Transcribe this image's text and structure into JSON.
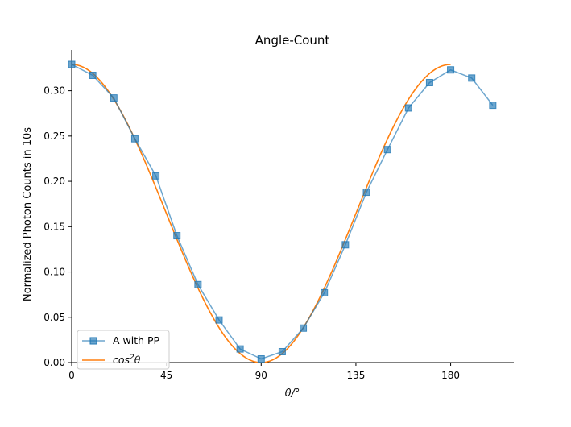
{
  "chart_data": {
    "type": "line",
    "title": "Angle-Count",
    "xlabel": "θ/°",
    "ylabel": "Normalized Photon Counts in 10s",
    "xlim": [
      0,
      210
    ],
    "ylim": [
      0,
      0.345
    ],
    "xticks": [
      0,
      45,
      90,
      135,
      180
    ],
    "yticks": [
      0.0,
      0.05,
      0.1,
      0.15,
      0.2,
      0.25,
      0.3
    ],
    "ytick_labels": [
      "0.00",
      "0.05",
      "0.10",
      "0.15",
      "0.20",
      "0.25",
      "0.30"
    ],
    "grid": false,
    "legend_position": "bottom-left",
    "series": [
      {
        "name": "A with PP",
        "kind": "line-markers",
        "marker": "square",
        "color": "#1f77b4",
        "x": [
          0,
          10,
          20,
          30,
          40,
          50,
          60,
          70,
          80,
          90,
          100,
          110,
          120,
          130,
          140,
          150,
          160,
          170,
          180,
          190,
          200
        ],
        "y": [
          0.329,
          0.317,
          0.292,
          0.247,
          0.206,
          0.14,
          0.086,
          0.047,
          0.015,
          0.004,
          0.012,
          0.038,
          0.077,
          0.13,
          0.188,
          0.235,
          0.281,
          0.309,
          0.323,
          0.314,
          0.284
        ]
      },
      {
        "name": "cos²θ",
        "name_base": "cos",
        "name_sup": "2",
        "name_tail": "θ",
        "kind": "curve",
        "function": "A·cos²(θ)",
        "amplitude": 0.329,
        "color": "#ff7f0e",
        "x_range": [
          0,
          180
        ]
      }
    ]
  }
}
